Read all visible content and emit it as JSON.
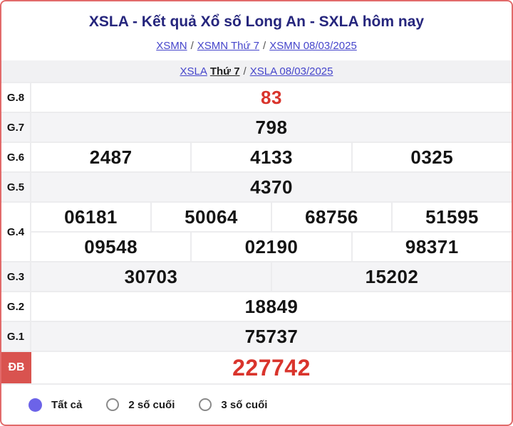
{
  "header": {
    "title": "XSLA - Kết quả Xổ số Long An - SXLA hôm nay",
    "breadcrumb1": {
      "link1": "XSMN",
      "sep1": "/",
      "link2": "XSMN Thứ 7",
      "sep2": "/",
      "link3": "XSMN 08/03/2025"
    },
    "breadcrumb2": {
      "link1": "XSLA",
      "current": "Thứ 7",
      "sep": "/",
      "link2": "XSLA 08/03/2025"
    }
  },
  "results_table": {
    "rows": [
      {
        "label": "G.8",
        "values": [
          "83"
        ]
      },
      {
        "label": "G.7",
        "values": [
          "798"
        ]
      },
      {
        "label": "G.6",
        "values": [
          "2487",
          "4133",
          "0325"
        ]
      },
      {
        "label": "G.5",
        "values": [
          "4370"
        ]
      },
      {
        "label": "G.4",
        "grid": [
          [
            "06181",
            "50064",
            "68756",
            "51595"
          ],
          [
            "09548",
            "02190",
            "98371"
          ]
        ]
      },
      {
        "label": "G.3",
        "values": [
          "30703",
          "15202"
        ]
      },
      {
        "label": "G.2",
        "values": [
          "18849"
        ]
      },
      {
        "label": "G.1",
        "values": [
          "75737"
        ]
      },
      {
        "label": "ĐB",
        "values": [
          "227742"
        ]
      }
    ]
  },
  "filters": {
    "options": [
      {
        "label": "Tất cả",
        "selected": true
      },
      {
        "label": "2 số cuối",
        "selected": false
      },
      {
        "label": "3 số cuối",
        "selected": false
      }
    ]
  },
  "colors": {
    "accent_red": "#d9342c",
    "special_badge_red": "#d9534f",
    "link_purple": "#4545cb",
    "title_navy": "#26267d",
    "radio_selected_purple": "#6c63e8",
    "page_border_red": "#e26a6a",
    "shaded_row_gray": "#f4f4f6"
  }
}
